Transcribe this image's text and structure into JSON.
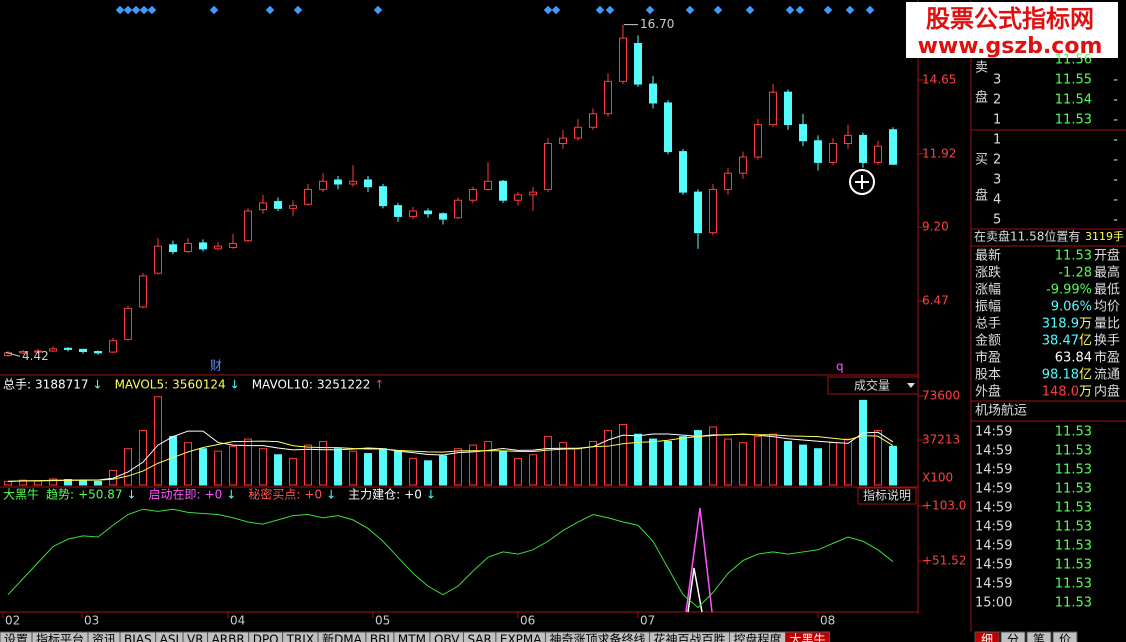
{
  "price_panel": {
    "yticks": [
      14.65,
      11.92,
      {
        "value": 9.2,
        "label": "9.20"
      },
      6.47
    ],
    "high_label": {
      "value": 16.7,
      "label": "16.70"
    },
    "low_label": {
      "value": 4.42,
      "label": "4.42"
    },
    "candles": [
      [
        4.45,
        4.62,
        4.4,
        4.55
      ],
      [
        4.55,
        4.66,
        4.5,
        4.6
      ],
      [
        4.58,
        4.7,
        4.55,
        4.62
      ],
      [
        4.62,
        4.78,
        4.58,
        4.7
      ],
      [
        4.72,
        4.76,
        4.6,
        4.68
      ],
      [
        4.68,
        4.7,
        4.52,
        4.6
      ],
      [
        4.6,
        4.64,
        4.48,
        4.55
      ],
      [
        4.58,
        5.1,
        4.55,
        5.0
      ],
      [
        5.05,
        6.3,
        5.0,
        6.2
      ],
      [
        6.25,
        7.5,
        6.2,
        7.4
      ],
      [
        7.5,
        8.8,
        7.45,
        8.5
      ],
      [
        8.55,
        8.7,
        8.2,
        8.3
      ],
      [
        8.3,
        8.8,
        8.25,
        8.6
      ],
      [
        8.62,
        8.75,
        8.3,
        8.4
      ],
      [
        8.4,
        8.65,
        8.35,
        8.5
      ],
      [
        8.45,
        8.95,
        8.4,
        8.6
      ],
      [
        8.7,
        9.9,
        8.65,
        9.8
      ],
      [
        9.85,
        10.4,
        9.7,
        10.1
      ],
      [
        10.15,
        10.3,
        9.8,
        9.9
      ],
      [
        9.9,
        10.2,
        9.6,
        10.0
      ],
      [
        10.05,
        10.8,
        10.0,
        10.6
      ],
      [
        10.6,
        11.2,
        10.5,
        10.9
      ],
      [
        10.95,
        11.1,
        10.6,
        10.8
      ],
      [
        10.8,
        11.5,
        10.7,
        10.9
      ],
      [
        10.95,
        11.1,
        10.5,
        10.7
      ],
      [
        10.7,
        10.8,
        9.9,
        10.0
      ],
      [
        10.0,
        10.1,
        9.4,
        9.6
      ],
      [
        9.6,
        9.95,
        9.5,
        9.8
      ],
      [
        9.8,
        9.9,
        9.55,
        9.7
      ],
      [
        9.7,
        9.75,
        9.3,
        9.5
      ],
      [
        9.55,
        10.3,
        9.5,
        10.2
      ],
      [
        10.2,
        10.7,
        10.1,
        10.6
      ],
      [
        10.6,
        11.6,
        10.55,
        10.9
      ],
      [
        10.9,
        10.95,
        10.1,
        10.2
      ],
      [
        10.2,
        10.5,
        10.0,
        10.4
      ],
      [
        10.4,
        10.7,
        9.8,
        10.5
      ],
      [
        10.6,
        12.5,
        10.5,
        12.3
      ],
      [
        12.3,
        12.8,
        12.1,
        12.5
      ],
      [
        12.5,
        13.2,
        12.4,
        12.9
      ],
      [
        12.9,
        13.6,
        12.8,
        13.4
      ],
      [
        13.4,
        14.9,
        13.3,
        14.6
      ],
      [
        14.6,
        16.7,
        14.5,
        16.2
      ],
      [
        16.0,
        16.3,
        14.4,
        14.5
      ],
      [
        14.5,
        14.8,
        13.6,
        13.8
      ],
      [
        13.8,
        13.9,
        11.9,
        12.0
      ],
      [
        12.0,
        12.1,
        10.4,
        10.5
      ],
      [
        10.5,
        10.6,
        8.4,
        9.0
      ],
      [
        9.0,
        10.8,
        8.9,
        10.6
      ],
      [
        10.6,
        11.4,
        10.4,
        11.2
      ],
      [
        11.2,
        12.0,
        11.0,
        11.8
      ],
      [
        11.8,
        13.2,
        11.7,
        13.0
      ],
      [
        13.0,
        14.5,
        12.9,
        14.2
      ],
      [
        14.2,
        14.3,
        12.8,
        13.0
      ],
      [
        13.0,
        13.4,
        12.2,
        12.4
      ],
      [
        12.4,
        12.6,
        11.3,
        11.6
      ],
      [
        11.6,
        12.5,
        11.5,
        12.3
      ],
      [
        12.3,
        13.0,
        12.1,
        12.6
      ],
      [
        12.6,
        12.7,
        11.4,
        11.6
      ],
      [
        11.6,
        12.4,
        11.5,
        12.2
      ],
      [
        12.81,
        12.9,
        11.53,
        11.53
      ]
    ],
    "markers": [
      "财",
      "q"
    ],
    "up_color": "#ff3c3c",
    "down_color": "#54fcfc"
  },
  "volume_panel": {
    "header": [
      {
        "label": "总手:",
        "value": "3188717",
        "arrow": "↓",
        "color": "#ffffff",
        "arrow_color": "#54fcfc"
      },
      {
        "label": "MAVOL5:",
        "value": "3560124",
        "arrow": "↓",
        "color": "#ffff54",
        "arrow_color": "#54fcfc"
      },
      {
        "label": "MAVOL10:",
        "value": "3251222",
        "arrow": "↑",
        "color": "#ffffff",
        "arrow_color": "#ff3c3c"
      }
    ],
    "dropdown": "成交量",
    "yticks": [
      73600,
      37213
    ],
    "unit": "X100",
    "volumes": [
      3000,
      4000,
      3500,
      5000,
      4500,
      3500,
      3000,
      12000,
      30000,
      45000,
      73000,
      40000,
      35000,
      30000,
      28000,
      32000,
      38000,
      30000,
      25000,
      22000,
      33000,
      36000,
      30000,
      28000,
      26000,
      30000,
      28000,
      22000,
      20000,
      24000,
      30000,
      33000,
      36000,
      28000,
      22000,
      25000,
      40000,
      35000,
      30000,
      36000,
      45000,
      50000,
      42000,
      38000,
      36000,
      40000,
      45000,
      48000,
      38000,
      35000,
      40000,
      42000,
      36000,
      33000,
      30000,
      35000,
      38000,
      70000,
      45000,
      31887
    ],
    "ma5": [
      3000,
      3500,
      3500,
      3900,
      4000,
      4100,
      4100,
      5600,
      10800,
      18900,
      33000,
      40000,
      44600,
      44600,
      35200,
      33000,
      32600,
      32600,
      30600,
      29000,
      29600,
      29200,
      29200,
      29800,
      30600,
      30000,
      28000,
      26800,
      25200,
      24800,
      26800,
      27400,
      28600,
      30200,
      28600,
      28800,
      30200,
      30400,
      30400,
      31600,
      37200,
      41200,
      40600,
      42200,
      42200,
      41200,
      40200,
      41400,
      41400,
      42200,
      41200,
      40000,
      38200,
      37200,
      36200,
      35200,
      34400,
      43000,
      43600,
      35601
    ],
    "ma10": [
      3000,
      3300,
      3400,
      3600,
      3800,
      3900,
      4000,
      4800,
      7400,
      11500,
      18000,
      22700,
      27300,
      31000,
      33500,
      35900,
      36100,
      36300,
      35900,
      32500,
      31300,
      30900,
      30900,
      30200,
      29800,
      29800,
      28600,
      28000,
      27400,
      27200,
      28200,
      28300,
      28400,
      28200,
      27800,
      27700,
      28800,
      29700,
      30000,
      31700,
      32100,
      34100,
      35300,
      35800,
      37000,
      38900,
      40000,
      40900,
      41700,
      42000,
      41600,
      41400,
      40600,
      40300,
      40000,
      38700,
      37300,
      40800,
      40400,
      32512
    ],
    "ma5_color": "#ffffff",
    "ma10_color": "#ffff54"
  },
  "indicator_panel": {
    "name": "大黑牛",
    "header": [
      {
        "label": "趋势:",
        "value": "+50.87",
        "arrow": "↓",
        "color": "#54ff54",
        "arrow_color": "#54fcfc"
      },
      {
        "label": "启动在即:",
        "value": "+0",
        "arrow": "↓",
        "color": "#ff54ff",
        "arrow_color": "#54fcfc"
      },
      {
        "label": "秘密买点:",
        "value": "+0",
        "arrow": "↓",
        "color": "#ff5454",
        "arrow_color": "#54fcfc"
      },
      {
        "label": "主力建仓:",
        "value": "+0",
        "arrow": "↓",
        "color": "#ffffff",
        "arrow_color": "#54fcfc"
      }
    ],
    "button": "指标说明",
    "yticks": [
      {
        "value": 103.0,
        "label": "+103.0"
      },
      {
        "value": 51.52,
        "label": "+51.52"
      }
    ],
    "trend": [
      20,
      35,
      50,
      65,
      72,
      75,
      74,
      85,
      95,
      100,
      98,
      100,
      97,
      96,
      95,
      92,
      88,
      86,
      90,
      94,
      95,
      92,
      94,
      90,
      82,
      70,
      55,
      40,
      28,
      20,
      28,
      42,
      55,
      60,
      58,
      62,
      70,
      80,
      88,
      95,
      92,
      88,
      85,
      70,
      45,
      20,
      8,
      22,
      40,
      52,
      58,
      60,
      58,
      60,
      62,
      68,
      74,
      70,
      62,
      50.87
    ],
    "trend_color": "#3cdc3c"
  },
  "x_axis": [
    "02",
    "03",
    "04",
    "05",
    "06",
    "07",
    "08"
  ],
  "tabs": [
    "设置",
    "指标平台",
    "资讯",
    "BIAS",
    "ASI",
    "VR",
    "ARBR",
    "DPO",
    "TRIX",
    "新DMA",
    "BBI",
    "MTM",
    "OBV",
    "SAR",
    "EXPMA",
    "神奇涨顶求备终线",
    "花神百战百胜",
    "控盘程度",
    "大黑牛"
  ],
  "side": {
    "watermark": {
      "title": "股票公式指标网",
      "url": "www.gszb.com"
    },
    "sell": {
      "label": [
        "卖",
        "盘"
      ],
      "cut_price": "11.56",
      "rows": [
        {
          "level": "3",
          "price": "11.55",
          "vol": "-"
        },
        {
          "level": "2",
          "price": "11.54",
          "vol": "-"
        },
        {
          "level": "1",
          "price": "11.53",
          "vol": "-"
        }
      ]
    },
    "buy": {
      "label": [
        "买",
        "盘"
      ],
      "rows": [
        {
          "level": "1",
          "vol": "-"
        },
        {
          "level": "2",
          "vol": "-"
        },
        {
          "level": "3",
          "vol": "-"
        },
        {
          "level": "4",
          "vol": "-"
        },
        {
          "level": "5",
          "vol": "-"
        }
      ]
    },
    "notice": {
      "text": "在卖盘11.58位置有",
      "qty": "3119手"
    },
    "stats": [
      {
        "label": "最新",
        "value": "11.53",
        "color": "#54ff54",
        "right": "开盘"
      },
      {
        "label": "涨跌",
        "value": "-1.28",
        "color": "#54ff54",
        "right": "最高"
      },
      {
        "label": "涨幅",
        "value": "-9.99%",
        "color": "#54ff54",
        "right": "最低"
      },
      {
        "label": "振幅",
        "value": "9.06%",
        "color": "#54fcfc",
        "right": "均价"
      },
      {
        "label": "总手",
        "value": "318.9",
        "unit": "万",
        "color": "#54fcfc",
        "right": "量比"
      },
      {
        "label": "金额",
        "value": "38.47",
        "unit": "亿",
        "color": "#54fcfc",
        "right": "换手"
      },
      {
        "label": "市盈",
        "value": "63.84",
        "color": "#ffffff",
        "right": "市盈"
      },
      {
        "label": "股本",
        "value": "98.18",
        "unit": "亿",
        "color": "#54fcfc",
        "right": "流通"
      },
      {
        "label": "外盘",
        "value": "148.0",
        "unit": "万",
        "color": "#ff3c3c",
        "right": "内盘"
      }
    ],
    "sector": "机场航运",
    "ticks": [
      {
        "time": "14:59",
        "price": "11.53"
      },
      {
        "time": "14:59",
        "price": "11.53"
      },
      {
        "time": "14:59",
        "price": "11.53"
      },
      {
        "time": "14:59",
        "price": "11.53"
      },
      {
        "time": "14:59",
        "price": "11.53"
      },
      {
        "time": "14:59",
        "price": "11.53"
      },
      {
        "time": "14:59",
        "price": "11.53"
      },
      {
        "time": "14:59",
        "price": "11.53"
      },
      {
        "time": "14:59",
        "price": "11.53"
      },
      {
        "time": "15:00",
        "price": "11.53"
      }
    ],
    "bottom_tabs": [
      "细",
      "分",
      "笔",
      "价"
    ]
  }
}
